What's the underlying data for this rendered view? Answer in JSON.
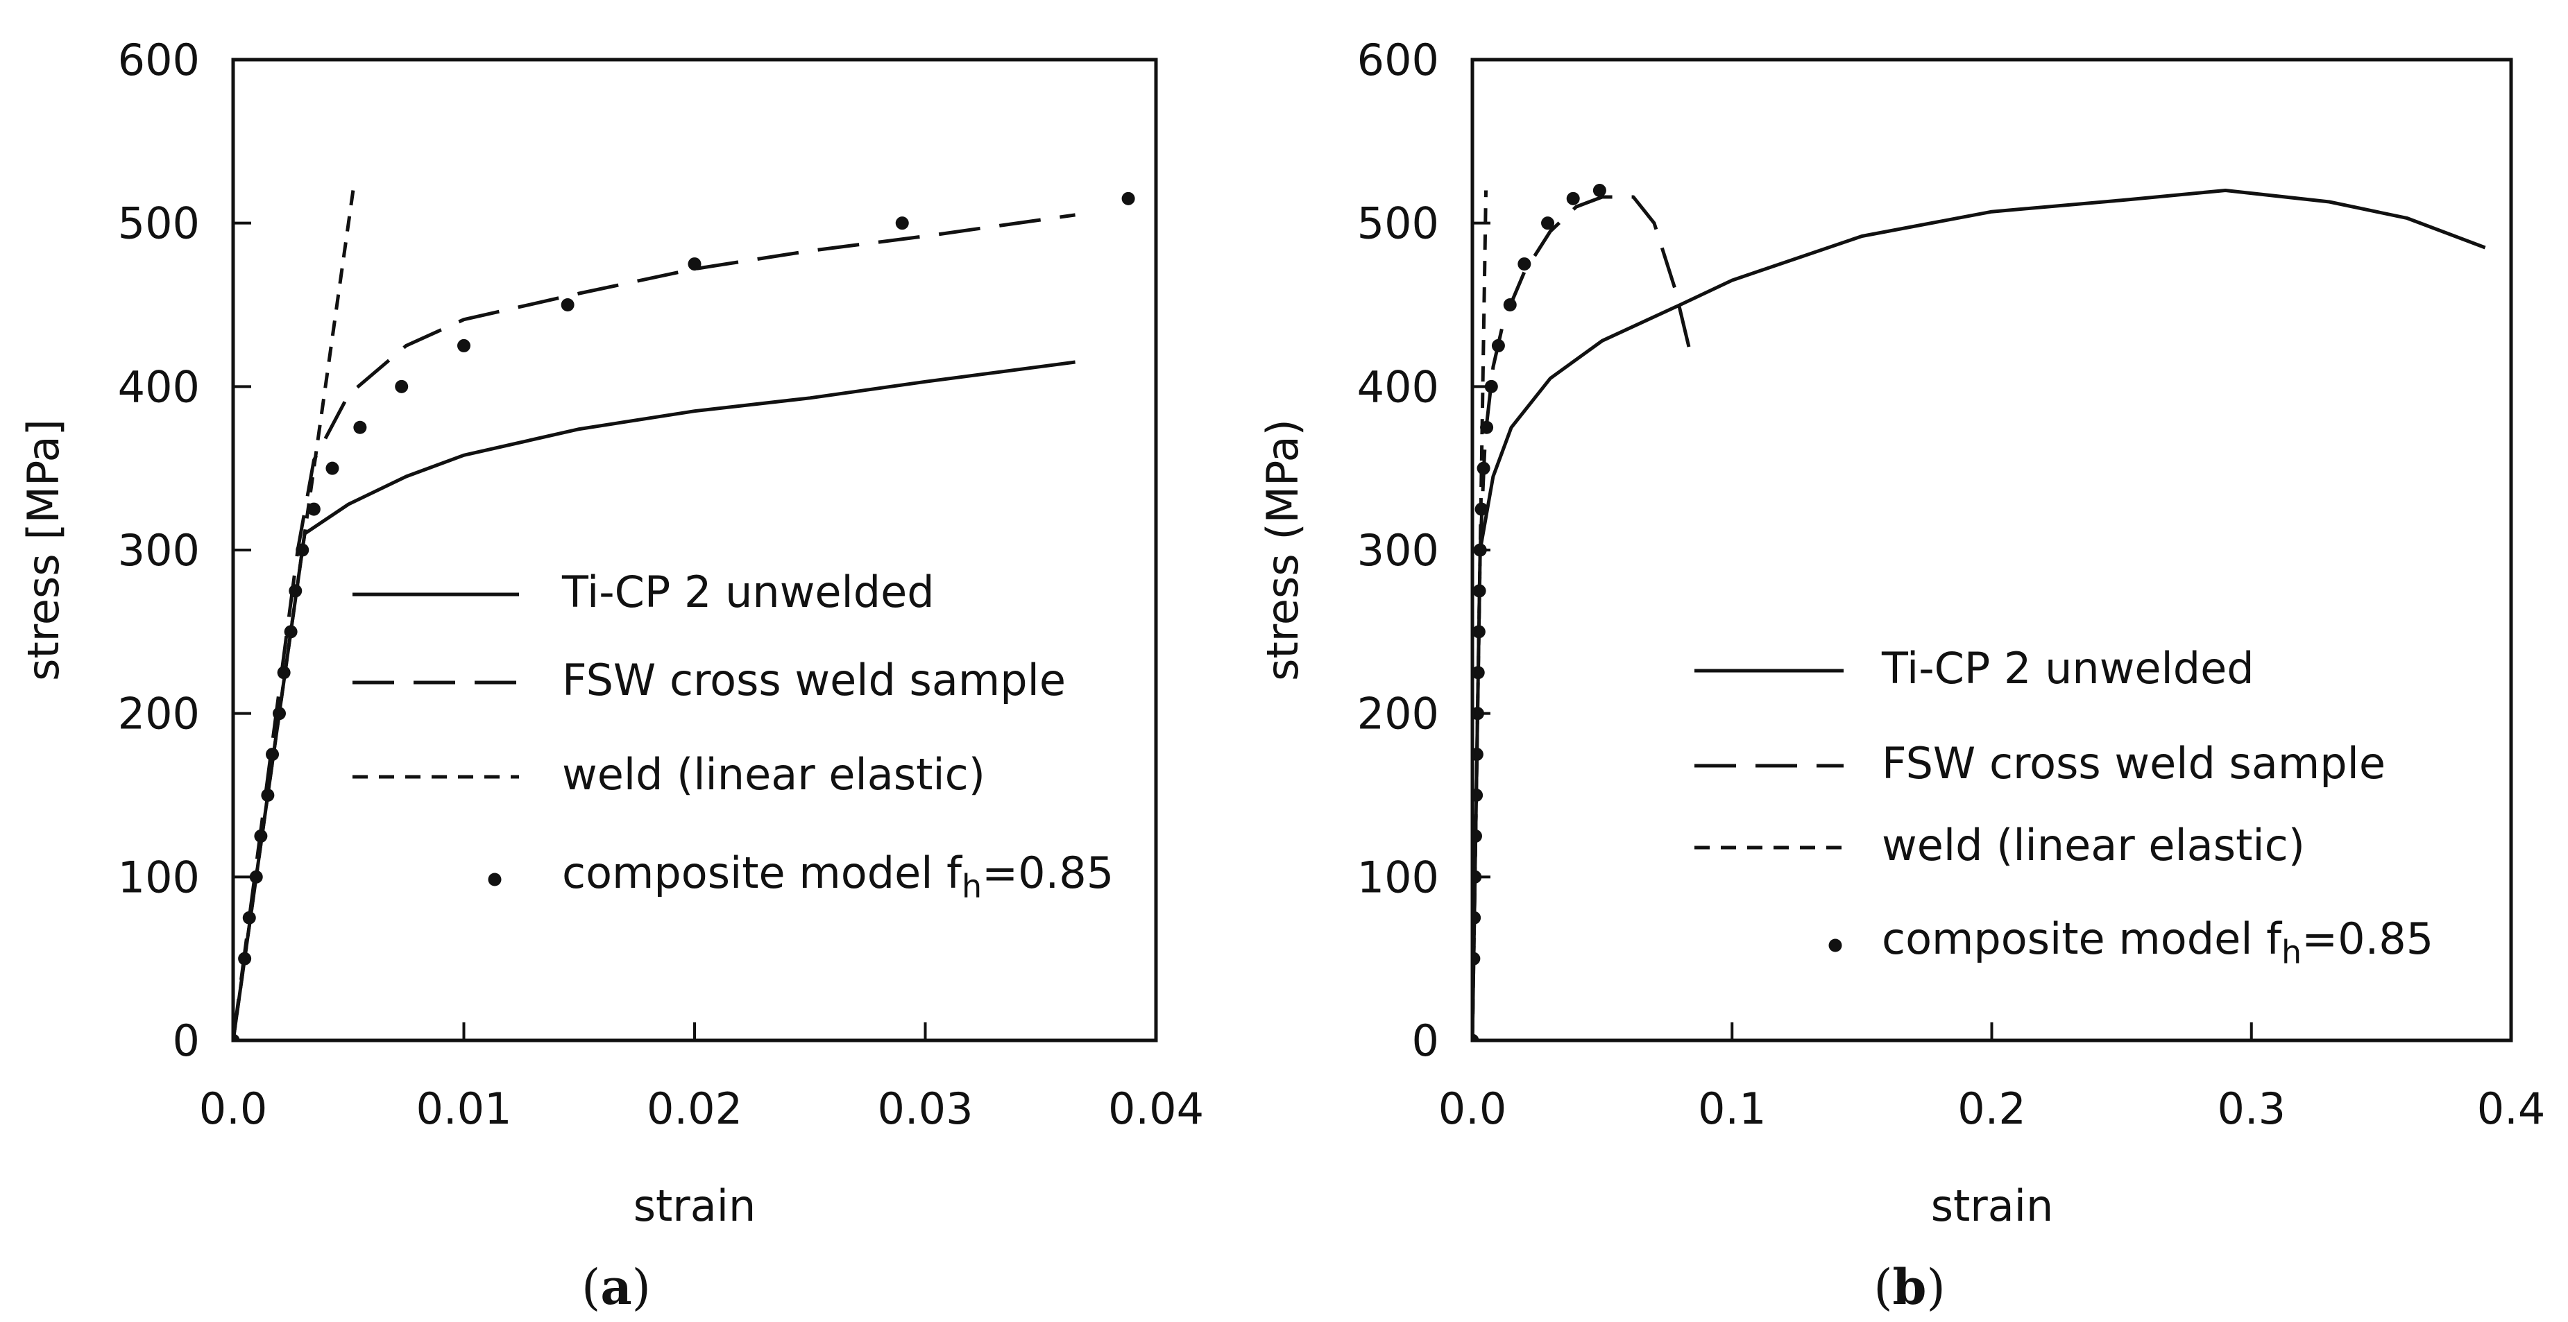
{
  "chart_data": [
    {
      "type": "line",
      "panel_label": {
        "open": "(",
        "letter": "a",
        "close": ")"
      },
      "xlabel": "strain",
      "ylabel": "stress [MPa]",
      "xlim": [
        0,
        0.04
      ],
      "ylim": [
        0,
        600
      ],
      "x_ticks": [
        0,
        0.01,
        0.02,
        0.03,
        0.04
      ],
      "x_tick_labels": [
        "0.0",
        "0.01",
        "0.02",
        "0.03",
        "0.04"
      ],
      "y_ticks": [
        0,
        100,
        200,
        300,
        400,
        500,
        600
      ],
      "y_tick_labels": [
        "0",
        "100",
        "200",
        "300",
        "400",
        "500",
        "600"
      ],
      "series": [
        {
          "name": "Ti-CP 2 unwelded",
          "style": "solid",
          "points": [
            [
              0,
              0
            ],
            [
              0.0031,
              310
            ],
            [
              0.005,
              328
            ],
            [
              0.0075,
              345
            ],
            [
              0.01,
              358
            ],
            [
              0.015,
              374
            ],
            [
              0.02,
              385
            ],
            [
              0.025,
              393
            ],
            [
              0.03,
              403
            ],
            [
              0.0365,
              415
            ]
          ]
        },
        {
          "name": "FSW cross weld sample",
          "style": "dashed",
          "points": [
            [
              0,
              0
            ],
            [
              0.0028,
              300
            ],
            [
              0.0035,
              355
            ],
            [
              0.005,
              395
            ],
            [
              0.0075,
              425
            ],
            [
              0.01,
              441
            ],
            [
              0.015,
              457
            ],
            [
              0.02,
              472
            ],
            [
              0.025,
              483
            ],
            [
              0.03,
              492
            ],
            [
              0.0365,
              505
            ]
          ]
        },
        {
          "name": "weld (linear elastic)",
          "style": "dotted",
          "points": [
            [
              0,
              0
            ],
            [
              0.0052,
              520
            ]
          ]
        },
        {
          "name": "composite model f",
          "name_subscript": "h",
          "name_suffix": "=0.85",
          "style": "markers",
          "points": [
            [
              0,
              0
            ],
            [
              0.0005,
              50
            ],
            [
              0.0007,
              75
            ],
            [
              0.001,
              100
            ],
            [
              0.0012,
              125
            ],
            [
              0.0015,
              150
            ],
            [
              0.0017,
              175
            ],
            [
              0.002,
              200
            ],
            [
              0.0022,
              225
            ],
            [
              0.0025,
              250
            ],
            [
              0.0027,
              275
            ],
            [
              0.003,
              300
            ],
            [
              0.0035,
              325
            ],
            [
              0.0043,
              350
            ],
            [
              0.0055,
              375
            ],
            [
              0.0073,
              400
            ],
            [
              0.01,
              425
            ],
            [
              0.0145,
              450
            ],
            [
              0.02,
              475
            ],
            [
              0.029,
              500
            ],
            [
              0.0388,
              515
            ]
          ]
        }
      ]
    },
    {
      "type": "line",
      "panel_label": {
        "open": "(",
        "letter": "b",
        "close": ")"
      },
      "xlabel": "strain",
      "ylabel": "stress (MPa)",
      "xlim": [
        0,
        0.4
      ],
      "ylim": [
        0,
        600
      ],
      "x_ticks": [
        0,
        0.1,
        0.2,
        0.3,
        0.4
      ],
      "x_tick_labels": [
        "0.0",
        "0.1",
        "0.2",
        "0.3",
        "0.4"
      ],
      "y_ticks": [
        0,
        100,
        200,
        300,
        400,
        500,
        600
      ],
      "y_tick_labels": [
        "0",
        "100",
        "200",
        "300",
        "400",
        "500",
        "600"
      ],
      "series": [
        {
          "name": "Ti-CP 2 unwelded",
          "style": "solid",
          "points": [
            [
              0,
              0
            ],
            [
              0.003,
              300
            ],
            [
              0.008,
              345
            ],
            [
              0.015,
              375
            ],
            [
              0.03,
              405
            ],
            [
              0.05,
              428
            ],
            [
              0.08,
              450
            ],
            [
              0.1,
              465
            ],
            [
              0.15,
              492
            ],
            [
              0.2,
              507
            ],
            [
              0.25,
              514
            ],
            [
              0.29,
              520
            ],
            [
              0.33,
              513
            ],
            [
              0.36,
              503
            ],
            [
              0.39,
              485
            ]
          ]
        },
        {
          "name": "FSW cross weld sample",
          "style": "dashed",
          "points": [
            [
              0,
              0
            ],
            [
              0.003,
              300
            ],
            [
              0.005,
              370
            ],
            [
              0.008,
              412
            ],
            [
              0.012,
              440
            ],
            [
              0.02,
              470
            ],
            [
              0.03,
              495
            ],
            [
              0.04,
              510
            ],
            [
              0.05,
              516
            ],
            [
              0.062,
              516
            ],
            [
              0.07,
              500
            ],
            [
              0.078,
              460
            ],
            [
              0.084,
              420
            ]
          ]
        },
        {
          "name": "weld (linear elastic)",
          "style": "dotted",
          "points": [
            [
              0,
              0
            ],
            [
              0.0052,
              520
            ]
          ]
        },
        {
          "name": "composite model  f",
          "name_subscript": "h",
          "name_suffix": "=0.85",
          "style": "markers",
          "points": [
            [
              0,
              0
            ],
            [
              0.0005,
              50
            ],
            [
              0.0007,
              75
            ],
            [
              0.001,
              100
            ],
            [
              0.0012,
              125
            ],
            [
              0.0015,
              150
            ],
            [
              0.0017,
              175
            ],
            [
              0.002,
              200
            ],
            [
              0.0022,
              225
            ],
            [
              0.0025,
              250
            ],
            [
              0.0027,
              275
            ],
            [
              0.003,
              300
            ],
            [
              0.0035,
              325
            ],
            [
              0.0043,
              350
            ],
            [
              0.0055,
              375
            ],
            [
              0.0073,
              400
            ],
            [
              0.01,
              425
            ],
            [
              0.0145,
              450
            ],
            [
              0.02,
              475
            ],
            [
              0.029,
              500
            ],
            [
              0.0388,
              515
            ],
            [
              0.049,
              520
            ]
          ]
        }
      ]
    }
  ]
}
